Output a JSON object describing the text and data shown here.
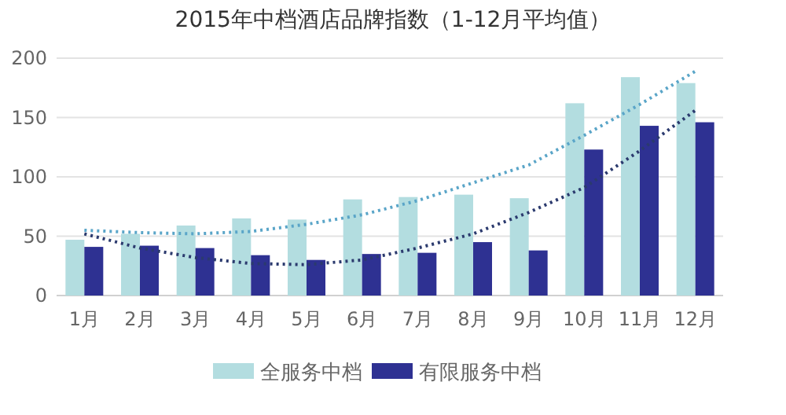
{
  "chart_data": {
    "type": "bar",
    "title": "2015年中档酒店品牌指数（1-12月平均值）",
    "categories": [
      "1月",
      "2月",
      "3月",
      "4月",
      "5月",
      "6月",
      "7月",
      "8月",
      "9月",
      "10月",
      "11月",
      "12月"
    ],
    "series": [
      {
        "name": "全服务中档",
        "color": "#b3dde0",
        "values": [
          47,
          52,
          59,
          65,
          64,
          81,
          83,
          85,
          82,
          162,
          184,
          179
        ]
      },
      {
        "name": "有限服务中档",
        "color": "#2e3192",
        "values": [
          41,
          42,
          40,
          34,
          30,
          35,
          36,
          45,
          38,
          123,
          143,
          146
        ]
      },
      {
        "type": "line",
        "line_style": "dotted",
        "color": "#5aa5c8",
        "values": [
          55,
          53,
          52,
          54,
          60,
          68,
          80,
          95,
          110,
          135,
          161,
          189
        ]
      },
      {
        "type": "line",
        "line_style": "dotted",
        "color": "#2b3a6e",
        "values": [
          52,
          40,
          32,
          27,
          26,
          30,
          40,
          52,
          70,
          91,
          122,
          156
        ]
      }
    ],
    "ylim": [
      0,
      200
    ],
    "yticks": [
      0,
      50,
      100,
      150,
      200
    ],
    "grid": "y",
    "legend": "bottom"
  }
}
